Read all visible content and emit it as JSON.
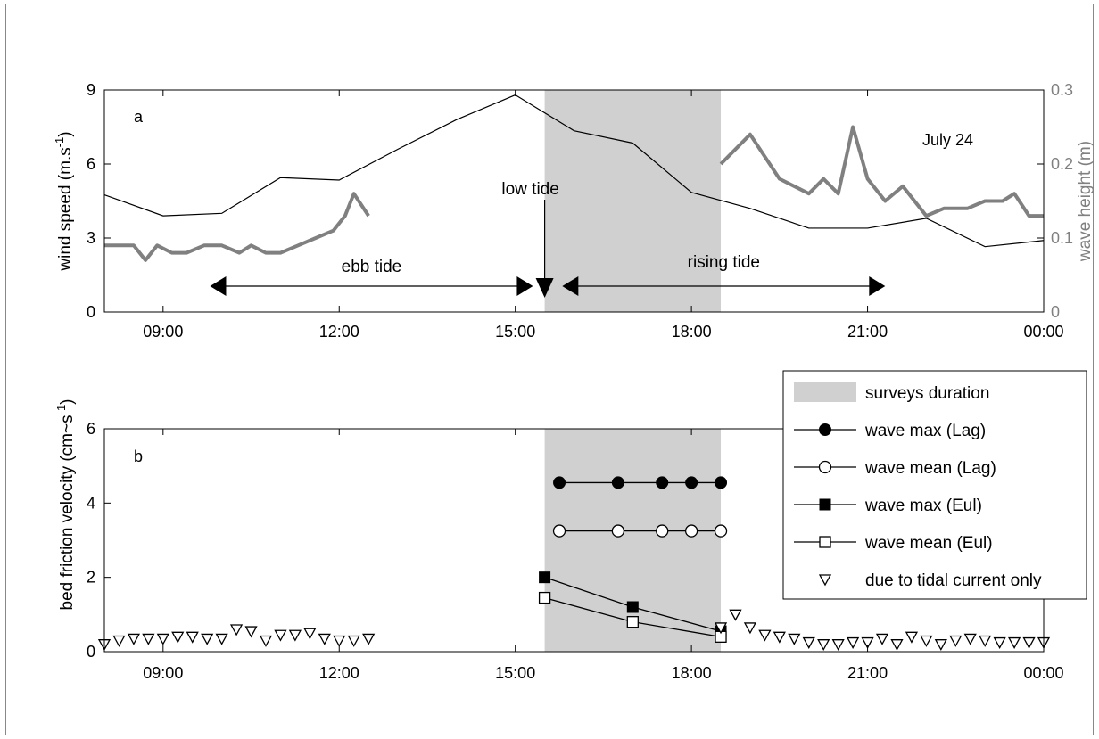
{
  "chart_data": [
    {
      "panel_label": "a",
      "type": "line",
      "annotation_date": "July 24",
      "x_unit": "hours since 08:00",
      "xlim": [
        8,
        24
      ],
      "xticks": [
        {
          "value": 9,
          "label": "09:00"
        },
        {
          "value": 12,
          "label": "12:00"
        },
        {
          "value": 15,
          "label": "15:00"
        },
        {
          "value": 18,
          "label": "18:00"
        },
        {
          "value": 21,
          "label": "21:00"
        },
        {
          "value": 24,
          "label": "00:00"
        }
      ],
      "ylabel": "wind speed (m.s",
      "ylabel_sup": "-1",
      "ylabel_tail": ")",
      "ylim": [
        0,
        9
      ],
      "yticks": [
        0,
        3,
        6,
        9
      ],
      "ylabel_right": "wave height (m)",
      "ylim_right": [
        0,
        0.3
      ],
      "yticks_right": [
        0,
        0.1,
        0.2,
        0.3
      ],
      "shaded_interval": [
        15.5,
        18.5
      ],
      "annotations": {
        "low_tide": "low tide",
        "low_tide_time": 15.5,
        "ebb_tide": "ebb tide",
        "ebb_range": [
          9.8,
          15.3
        ],
        "rising_tide": "rising tide",
        "rising_range": [
          15.8,
          21.3
        ]
      },
      "series": [
        {
          "axis": "left",
          "color": "#000000",
          "x": [
            8,
            9,
            10,
            11,
            12,
            13,
            14,
            15,
            16,
            17,
            18,
            19,
            20,
            21,
            22,
            23,
            24
          ],
          "values": [
            4.75,
            3.9,
            4.0,
            5.45,
            5.35,
            6.6,
            7.8,
            8.8,
            7.35,
            6.85,
            4.85,
            4.2,
            3.4,
            3.4,
            3.8,
            2.65,
            2.9
          ]
        },
        {
          "axis": "right",
          "color": "#808080",
          "segments": [
            {
              "x": [
                8,
                8.5,
                8.7,
                8.9,
                9.15,
                9.4,
                9.7,
                10.0,
                10.3,
                10.5,
                10.75,
                11.0,
                11.3,
                11.6,
                11.9,
                12.1,
                12.25,
                12.5
              ],
              "values": [
                0.09,
                0.09,
                0.07,
                0.09,
                0.08,
                0.08,
                0.09,
                0.09,
                0.08,
                0.09,
                0.08,
                0.08,
                0.09,
                0.1,
                0.11,
                0.13,
                0.16,
                0.13
              ]
            },
            {
              "x": [
                18.5,
                19.0,
                19.5,
                20.0,
                20.25,
                20.5,
                20.75,
                21.0,
                21.3,
                21.6,
                22.0,
                22.3,
                22.7,
                23.0,
                23.3,
                23.5,
                23.75,
                24.0
              ],
              "values": [
                0.2,
                0.24,
                0.18,
                0.16,
                0.18,
                0.16,
                0.25,
                0.18,
                0.15,
                0.17,
                0.13,
                0.14,
                0.14,
                0.15,
                0.15,
                0.16,
                0.13,
                0.13
              ]
            }
          ]
        }
      ]
    },
    {
      "panel_label": "b",
      "type": "scatter",
      "x_unit": "hours since 08:00",
      "xlim": [
        8,
        24
      ],
      "xticks": [
        {
          "value": 9,
          "label": "09:00"
        },
        {
          "value": 12,
          "label": "12:00"
        },
        {
          "value": 15,
          "label": "15:00"
        },
        {
          "value": 18,
          "label": "18:00"
        },
        {
          "value": 21,
          "label": "21:00"
        },
        {
          "value": 24,
          "label": "00:00"
        }
      ],
      "ylabel": "bed friction velocity (cm~s",
      "ylabel_sup": "-1",
      "ylabel_tail": ")",
      "ylim": [
        0,
        6
      ],
      "yticks": [
        0,
        2,
        4,
        6
      ],
      "shaded_interval": [
        15.5,
        18.5
      ],
      "legend_placement": "top-right",
      "series": [
        {
          "name": "wave max (Lag)",
          "marker": "circle-filled",
          "line": true,
          "x": [
            15.75,
            16.75,
            17.5,
            18.0,
            18.5
          ],
          "values": [
            4.55,
            4.55,
            4.55,
            4.55,
            4.55
          ]
        },
        {
          "name": "wave mean (Lag)",
          "marker": "circle-open",
          "line": true,
          "x": [
            15.75,
            16.75,
            17.5,
            18.0,
            18.5
          ],
          "values": [
            3.25,
            3.25,
            3.25,
            3.25,
            3.25
          ]
        },
        {
          "name": "wave max (Eul)",
          "marker": "square-filled",
          "line": true,
          "x": [
            15.5,
            17.0,
            18.5
          ],
          "values": [
            2.0,
            1.2,
            0.55
          ]
        },
        {
          "name": "wave mean (Eul)",
          "marker": "square-open",
          "line": true,
          "x": [
            15.5,
            17.0,
            18.5
          ],
          "values": [
            1.45,
            0.8,
            0.4
          ]
        },
        {
          "name": "due to tidal current only",
          "marker": "triangle-down-open",
          "line": false,
          "x": [
            8.0,
            8.25,
            8.5,
            8.75,
            9.0,
            9.25,
            9.5,
            9.75,
            10.0,
            10.25,
            10.5,
            10.75,
            11.0,
            11.25,
            11.5,
            11.75,
            12.0,
            12.25,
            12.5,
            18.5,
            18.75,
            19.0,
            19.25,
            19.5,
            19.75,
            20.0,
            20.25,
            20.5,
            20.75,
            21.0,
            21.25,
            21.5,
            21.75,
            22.0,
            22.25,
            22.5,
            22.75,
            23.0,
            23.25,
            23.5,
            23.75,
            24.0
          ],
          "values": [
            0.2,
            0.3,
            0.35,
            0.35,
            0.35,
            0.4,
            0.4,
            0.35,
            0.35,
            0.6,
            0.55,
            0.3,
            0.45,
            0.45,
            0.5,
            0.35,
            0.3,
            0.3,
            0.35,
            0.65,
            1.0,
            0.65,
            0.45,
            0.4,
            0.35,
            0.25,
            0.2,
            0.2,
            0.25,
            0.25,
            0.35,
            0.2,
            0.4,
            0.3,
            0.2,
            0.3,
            0.35,
            0.3,
            0.25,
            0.25,
            0.25,
            0.25
          ]
        }
      ],
      "legend": {
        "shade_label": "surveys duration",
        "entries": [
          {
            "label": "wave max (Lag)",
            "marker": "circle-filled",
            "line": true
          },
          {
            "label": "wave mean (Lag)",
            "marker": "circle-open",
            "line": true
          },
          {
            "label": "wave max (Eul)",
            "marker": "square-filled",
            "line": true
          },
          {
            "label": "wave mean (Eul)",
            "marker": "square-open",
            "line": true
          },
          {
            "label": "due to tidal current only",
            "marker": "triangle-down-open",
            "line": false
          }
        ]
      }
    }
  ],
  "colors": {
    "shade": "#d0d0d0",
    "wave_height": "#808080",
    "wind": "#000000"
  }
}
